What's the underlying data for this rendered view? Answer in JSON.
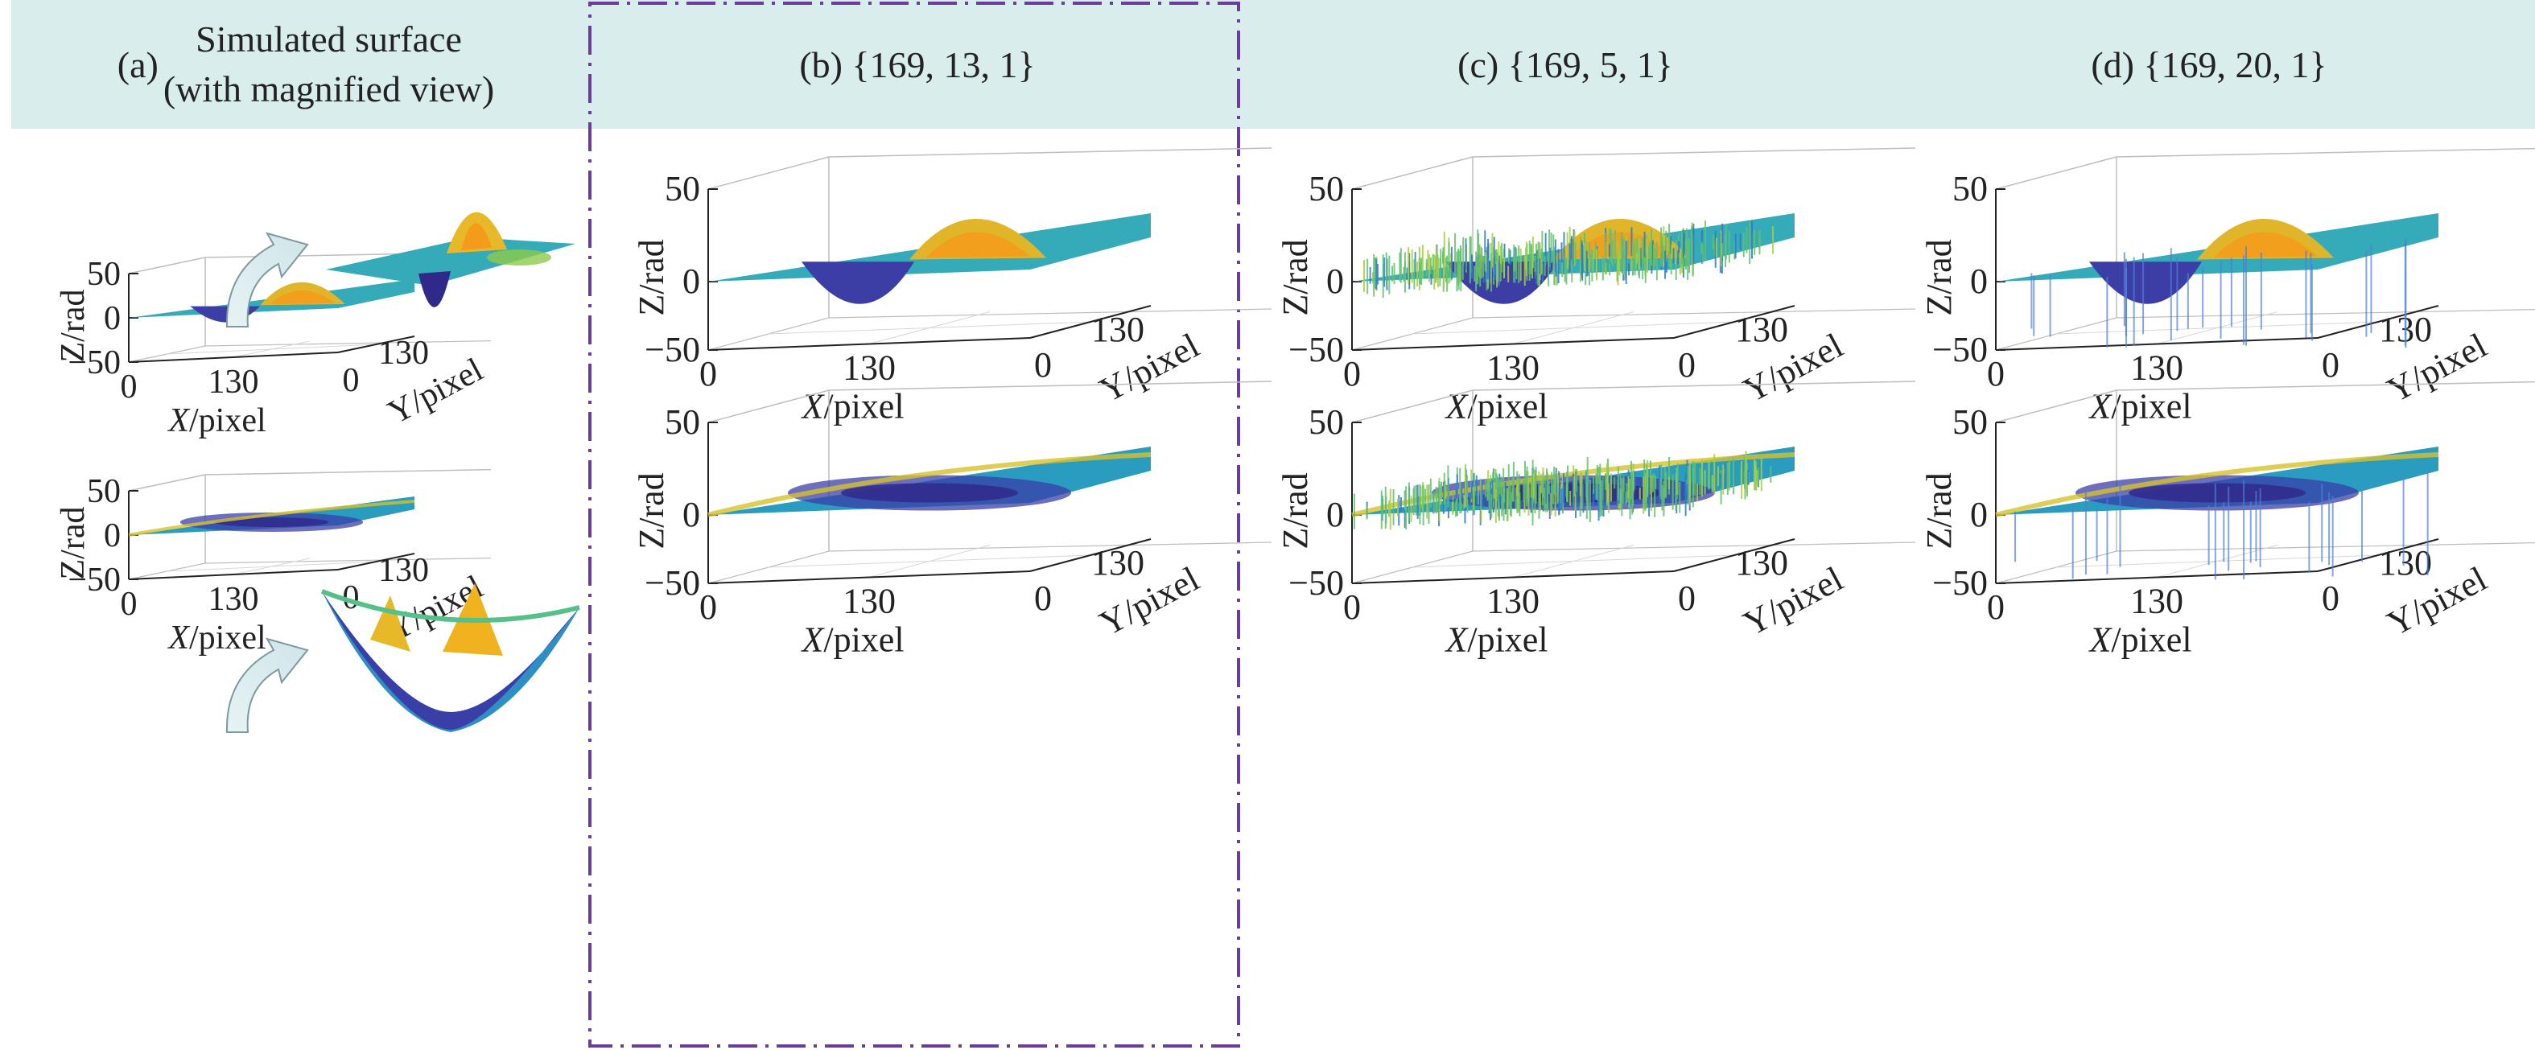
{
  "headers": {
    "a_letter": "(a)",
    "a_line1": "Simulated surface",
    "a_line2": "(with magnified view)",
    "b": "(b) {169, 13, 1}",
    "c": "(c) {169, 5, 1}",
    "d": "(d) {169, 20, 1}"
  },
  "colors": {
    "header_bg": "#d9eded",
    "divider": "#6a3d9a",
    "arrow_fill": "#dcecef",
    "arrow_stroke": "#7c9aa0",
    "colormap": [
      "#3b2a8f",
      "#2f6fc9",
      "#1fa7b8",
      "#3cbf8a",
      "#9ccc40",
      "#f0c020",
      "#f7a21a"
    ]
  },
  "chart_data": [
    {
      "type": "surface",
      "panel": "a-top",
      "surface": "gaussian-peaks",
      "magnified_view": true,
      "zlabel": "Z/rad",
      "xlabel": "X/pixel",
      "ylabel": "Y/pixel",
      "zticks": [
        "50",
        "0",
        "−50"
      ],
      "xticks": [
        "0",
        "130"
      ],
      "yticks": [
        "0",
        "130"
      ],
      "zlim": [
        -50,
        50
      ]
    },
    {
      "type": "surface",
      "panel": "a-bottom",
      "surface": "paraboloid-with-peaks",
      "magnified_view": true,
      "zlabel": "Z/rad",
      "xlabel": "X/pixel",
      "ylabel": "Y/pixel",
      "zticks": [
        "50",
        "0",
        "−50"
      ],
      "xticks": [
        "0",
        "130"
      ],
      "yticks": [
        "0",
        "130"
      ],
      "zlim": [
        -50,
        50
      ]
    },
    {
      "type": "surface",
      "panel": "b-top",
      "params": "{169, 13, 1}",
      "surface": "gaussian-peaks",
      "noise": "none",
      "zlabel": "Z/rad",
      "xlabel": "X/pixel",
      "ylabel": "Y/pixel",
      "zticks": [
        "50",
        "0",
        "−50"
      ],
      "xticks": [
        "0",
        "130"
      ],
      "yticks": [
        "0",
        "130"
      ],
      "zlim": [
        -50,
        50
      ]
    },
    {
      "type": "surface",
      "panel": "b-bottom",
      "params": "{169, 13, 1}",
      "surface": "paraboloid-with-peaks",
      "noise": "none",
      "zlabel": "Z/rad",
      "xlabel": "X/pixel",
      "ylabel": "Y/pixel",
      "zticks": [
        "50",
        "0",
        "−50"
      ],
      "xticks": [
        "0",
        "130"
      ],
      "yticks": [
        "0",
        "130"
      ],
      "zlim": [
        -50,
        50
      ]
    },
    {
      "type": "surface",
      "panel": "c-top",
      "params": "{169, 5, 1}",
      "surface": "gaussian-peaks",
      "noise": "dense",
      "zlabel": "Z/rad",
      "xlabel": "X/pixel",
      "ylabel": "Y/pixel",
      "zticks": [
        "50",
        "0",
        "−50"
      ],
      "xticks": [
        "0",
        "130"
      ],
      "yticks": [
        "0",
        "130"
      ],
      "zlim": [
        -50,
        50
      ]
    },
    {
      "type": "surface",
      "panel": "c-bottom",
      "params": "{169, 5, 1}",
      "surface": "paraboloid-with-peaks",
      "noise": "dense",
      "zlabel": "Z/rad",
      "xlabel": "X/pixel",
      "ylabel": "Y/pixel",
      "zticks": [
        "50",
        "0",
        "−50"
      ],
      "xticks": [
        "0",
        "130"
      ],
      "yticks": [
        "0",
        "130"
      ],
      "zlim": [
        -50,
        50
      ]
    },
    {
      "type": "surface",
      "panel": "d-top",
      "params": "{169, 20, 1}",
      "surface": "gaussian-peaks",
      "noise": "sparse-spikes",
      "zlabel": "Z/rad",
      "xlabel": "X/pixel",
      "ylabel": "Y/pixel",
      "zticks": [
        "50",
        "0",
        "−50"
      ],
      "xticks": [
        "0",
        "130"
      ],
      "yticks": [
        "0",
        "130"
      ],
      "zlim": [
        -50,
        50
      ]
    },
    {
      "type": "surface",
      "panel": "d-bottom",
      "params": "{169, 20, 1}",
      "surface": "paraboloid-with-peaks",
      "noise": "sparse-spikes",
      "zlabel": "Z/rad",
      "xlabel": "X/pixel",
      "ylabel": "Y/pixel",
      "zticks": [
        "50",
        "0",
        "−50"
      ],
      "xticks": [
        "0",
        "130"
      ],
      "yticks": [
        "0",
        "130"
      ],
      "zlim": [
        -50,
        50
      ]
    }
  ]
}
